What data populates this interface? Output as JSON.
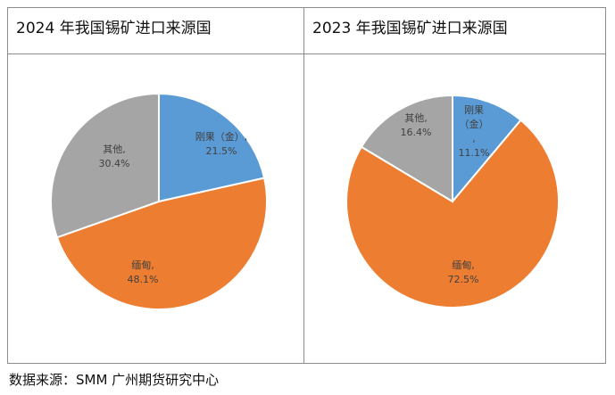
{
  "chart_data": [
    {
      "type": "pie",
      "title": "2024 年我国锡矿进口来源国",
      "slices": [
        {
          "label": "刚果（金）,",
          "value": 21.5,
          "value_label": "21.5%",
          "color": "#5b9bd5"
        },
        {
          "label": "缅甸,",
          "value": 48.1,
          "value_label": "48.1%",
          "color": "#ed7d31"
        },
        {
          "label": "其他,",
          "value": 30.4,
          "value_label": "30.4%",
          "color": "#a5a5a5"
        }
      ]
    },
    {
      "type": "pie",
      "title": "2023 年我国锡矿进口来源国",
      "slices": [
        {
          "label": "刚果（金）,",
          "value": 11.1,
          "value_label": "11.1%",
          "color": "#5b9bd5"
        },
        {
          "label": "缅甸,",
          "value": 72.5,
          "value_label": "72.5%",
          "color": "#ed7d31"
        },
        {
          "label": "其他,",
          "value": 16.4,
          "value_label": "16.4%",
          "color": "#a5a5a5"
        }
      ]
    }
  ],
  "footer": {
    "source": "数据来源：SMM  广州期货研究中心"
  }
}
